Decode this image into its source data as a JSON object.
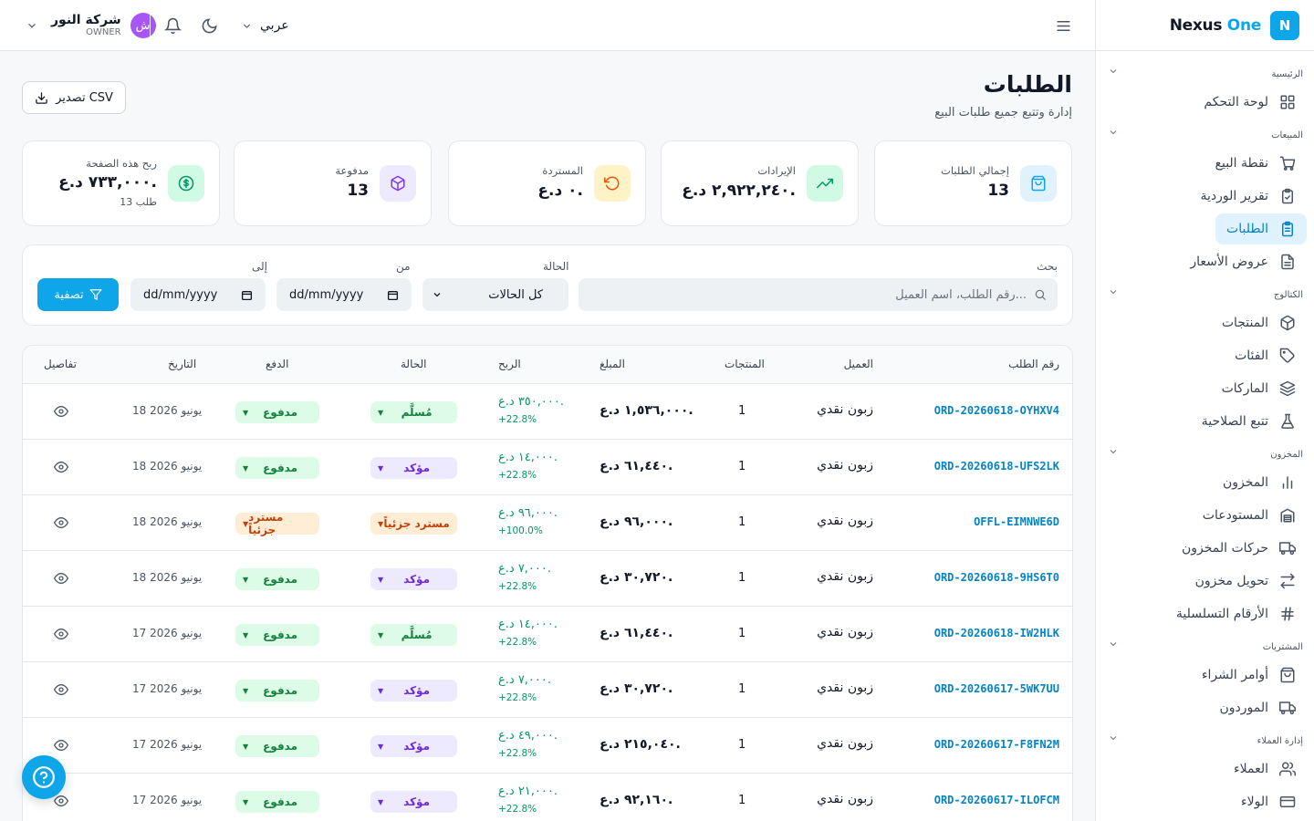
{
  "brand": {
    "logo_letter": "N",
    "name_main": "Nexus",
    "name_accent": " One"
  },
  "sidebar": {
    "sections": [
      {
        "title": "الرئيسية",
        "items": [
          {
            "label": "لوحة التحكم",
            "icon": "grid-icon"
          }
        ]
      },
      {
        "title": "المبيعات",
        "items": [
          {
            "label": "نقطة البيع",
            "icon": "cart-icon"
          },
          {
            "label": "تقرير الوردية",
            "icon": "clipboard-check-icon"
          },
          {
            "label": "الطلبات",
            "icon": "clipboard-list-icon",
            "active": true
          },
          {
            "label": "عروض الأسعار",
            "icon": "file-text-icon"
          }
        ]
      },
      {
        "title": "الكتالوج",
        "items": [
          {
            "label": "المنتجات",
            "icon": "box-icon"
          },
          {
            "label": "الفئات",
            "icon": "tag-icon"
          },
          {
            "label": "الماركات",
            "icon": "layers-icon"
          },
          {
            "label": "تتبع الصلاحية",
            "icon": "flask-icon"
          }
        ]
      },
      {
        "title": "المخزون",
        "items": [
          {
            "label": "المخزون",
            "icon": "bar-chart-icon"
          },
          {
            "label": "المستودعات",
            "icon": "warehouse-icon"
          },
          {
            "label": "حركات المخزون",
            "icon": "truck-icon"
          },
          {
            "label": "تحويل مخزون",
            "icon": "transfer-icon"
          },
          {
            "label": "الأرقام التسلسلية",
            "icon": "hash-icon"
          }
        ]
      },
      {
        "title": "المشتريات",
        "items": [
          {
            "label": "أوامر الشراء",
            "icon": "shopping-bag-icon"
          },
          {
            "label": "الموردون",
            "icon": "truck-icon"
          }
        ]
      },
      {
        "title": "إدارة العملاء",
        "items": [
          {
            "label": "العملاء",
            "icon": "users-icon"
          },
          {
            "label": "الولاء",
            "icon": "credit-card-icon"
          }
        ]
      }
    ]
  },
  "topbar": {
    "company": "شركة النور",
    "role": "OWNER",
    "avatar_letter": "ش",
    "language": "عربي"
  },
  "page": {
    "title": "الطلبات",
    "subtitle": "إدارة وتتبع جميع طلبات البيع",
    "export_label": "تصدير CSV"
  },
  "stats": [
    {
      "label": "إجمالي الطلبات",
      "value": "13",
      "icon": "bag-icon",
      "color": "#0ea5e9",
      "bg": "#e0f2fe"
    },
    {
      "label": "الإيرادات",
      "value": "٢,٩٢٢,٢٤٠ د.ع.",
      "icon": "trending-up-icon",
      "color": "#059669",
      "bg": "#d1fae5"
    },
    {
      "label": "المستردة",
      "value": "٠ د.ع.",
      "icon": "rotate-ccw-icon",
      "color": "#ea580c",
      "bg": "#fef3c7"
    },
    {
      "label": "مدفوعة",
      "value": "13",
      "icon": "package-icon",
      "color": "#7c3aed",
      "bg": "#ede9fe"
    },
    {
      "label": "ربح هذه الصفحة",
      "value": "٧٣٣,٠٠٠ د.ع.",
      "extra": "13 طلب",
      "icon": "dollar-icon",
      "color": "#059669",
      "bg": "#d1fae5"
    }
  ],
  "filters": {
    "search_label": "بحث",
    "search_placeholder": "رقم الطلب، اسم العميل...",
    "status_label": "الحالة",
    "status_value": "كل الحالات",
    "from_label": "من",
    "from_placeholder": "dd/mm/yyyy",
    "to_label": "إلى",
    "to_placeholder": "dd/mm/yyyy",
    "filter_button": "تصفية"
  },
  "table": {
    "headers": {
      "order": "رقم الطلب",
      "customer": "العميل",
      "items": "المنتجات",
      "amount": "المبلغ",
      "profit": "الربح",
      "status": "الحالة",
      "payment": "الدفع",
      "date": "التاريخ",
      "details": "تفاصيل"
    },
    "rows": [
      {
        "order": "ORD-20260618-OYHXV4",
        "customer": "زبون نقدي",
        "items": "1",
        "amount": "١,٥٣٦,٠٠٠ د.ع.",
        "profit": "٣٥٠,٠٠٠ د.ع.",
        "profit_pct": "+22.8%",
        "status": "مُسلَّم",
        "status_kind": "delivered",
        "payment": "مدفوع",
        "payment_kind": "paid",
        "date": "18 يونيو 2026"
      },
      {
        "order": "ORD-20260618-UFS2LK",
        "customer": "زبون نقدي",
        "items": "1",
        "amount": "٦١,٤٤٠ د.ع.",
        "profit": "١٤,٠٠٠ د.ع.",
        "profit_pct": "+22.8%",
        "status": "مؤكد",
        "status_kind": "confirmed",
        "payment": "مدفوع",
        "payment_kind": "paid",
        "date": "18 يونيو 2026"
      },
      {
        "order": "OFFL-EIMNWE6D",
        "customer": "زبون نقدي",
        "items": "1",
        "amount": "٩٦,٠٠٠ د.ع.",
        "profit": "٩٦,٠٠٠ د.ع.",
        "profit_pct": "+100.0%",
        "status": "مسترد جزئياً",
        "status_kind": "refund",
        "payment": "مسترد جزئياً",
        "payment_kind": "refund",
        "date": "18 يونيو 2026"
      },
      {
        "order": "ORD-20260618-9HS6T0",
        "customer": "زبون نقدي",
        "items": "1",
        "amount": "٣٠,٧٢٠ د.ع.",
        "profit": "٧,٠٠٠ د.ع.",
        "profit_pct": "+22.8%",
        "status": "مؤكد",
        "status_kind": "confirmed",
        "payment": "مدفوع",
        "payment_kind": "paid",
        "date": "18 يونيو 2026"
      },
      {
        "order": "ORD-20260618-IW2HLK",
        "customer": "زبون نقدي",
        "items": "1",
        "amount": "٦١,٤٤٠ د.ع.",
        "profit": "١٤,٠٠٠ د.ع.",
        "profit_pct": "+22.8%",
        "status": "مُسلَّم",
        "status_kind": "delivered",
        "payment": "مدفوع",
        "payment_kind": "paid",
        "date": "17 يونيو 2026"
      },
      {
        "order": "ORD-20260617-5WK7UU",
        "customer": "زبون نقدي",
        "items": "1",
        "amount": "٣٠,٧٢٠ د.ع.",
        "profit": "٧,٠٠٠ د.ع.",
        "profit_pct": "+22.8%",
        "status": "مؤكد",
        "status_kind": "confirmed",
        "payment": "مدفوع",
        "payment_kind": "paid",
        "date": "17 يونيو 2026"
      },
      {
        "order": "ORD-20260617-F8FN2M",
        "customer": "زبون نقدي",
        "items": "1",
        "amount": "٢١٥,٠٤٠ د.ع.",
        "profit": "٤٩,٠٠٠ د.ع.",
        "profit_pct": "+22.8%",
        "status": "مؤكد",
        "status_kind": "confirmed",
        "payment": "مدفوع",
        "payment_kind": "paid",
        "date": "17 يونيو 2026"
      },
      {
        "order": "ORD-20260617-ILOFCM",
        "customer": "زبون نقدي",
        "items": "1",
        "amount": "٩٢,١٦٠ د.ع.",
        "profit": "٢١,٠٠٠ د.ع.",
        "profit_pct": "+22.8%",
        "status": "مؤكد",
        "status_kind": "confirmed",
        "payment": "مدفوع",
        "payment_kind": "paid",
        "date": "17 يونيو 2026"
      }
    ]
  },
  "help": {
    "icon": "help-circle-icon"
  }
}
